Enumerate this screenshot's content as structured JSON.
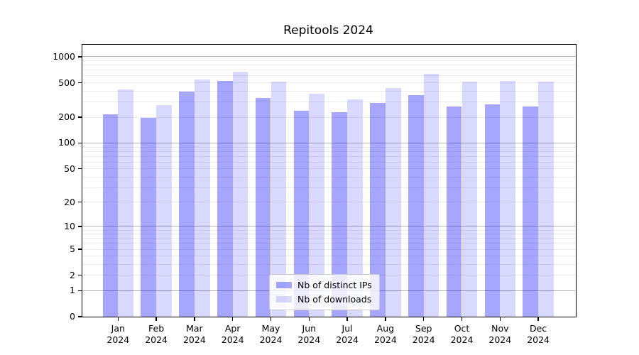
{
  "chart_data": {
    "type": "bar",
    "title": "Repitools 2024",
    "categories": [
      "Jan",
      "Feb",
      "Mar",
      "Apr",
      "May",
      "Jun",
      "Jul",
      "Aug",
      "Sep",
      "Oct",
      "Nov",
      "Dec"
    ],
    "year_label": "2024",
    "series": [
      {
        "name": "Nb of distinct IPs",
        "color": "#0000ff",
        "alpha": 0.35,
        "values": [
          217,
          198,
          393,
          528,
          334,
          237,
          227,
          291,
          363,
          266,
          282,
          265
        ]
      },
      {
        "name": "Nb of downloads",
        "color": "#0000ff",
        "alpha": 0.15,
        "values": [
          421,
          275,
          546,
          673,
          516,
          375,
          322,
          435,
          632,
          516,
          528,
          515
        ]
      }
    ],
    "yscale": "log10(value+1)",
    "yticks": [
      0,
      1,
      2,
      5,
      10,
      20,
      50,
      100,
      200,
      500,
      1000
    ],
    "ylim": [
      0,
      1390
    ],
    "xlabel": "",
    "ylabel": "",
    "grid": true,
    "legend_position": "lower center"
  },
  "colors": {
    "background": "#ffffff",
    "axis": "#000000",
    "major_grid": "#b3b3b3",
    "minor_grid": "#ececec",
    "text": "#000000",
    "legend_border": "#cccccc"
  }
}
